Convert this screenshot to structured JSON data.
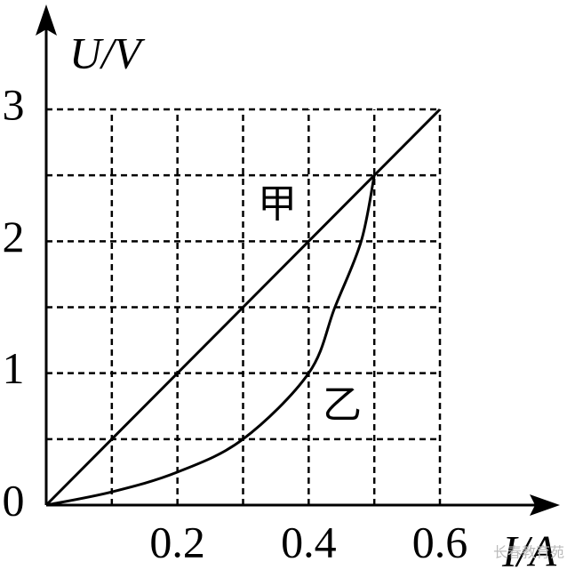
{
  "chart_data": {
    "type": "line",
    "x_label": "I/A",
    "y_label": "U/V",
    "xlim": [
      0,
      0.6
    ],
    "ylim": [
      0,
      3
    ],
    "xticks": [
      0.2,
      0.4,
      0.6
    ],
    "yticks": [
      0,
      1,
      2,
      3
    ],
    "xgrid": [
      0.1,
      0.2,
      0.3,
      0.4,
      0.5,
      0.6
    ],
    "ygrid": [
      0.5,
      1,
      1.5,
      2,
      2.5,
      3
    ],
    "grid": true,
    "series": [
      {
        "name": "甲",
        "color": "#000000",
        "x": [
          0,
          0.6
        ],
        "values": [
          0,
          3
        ]
      },
      {
        "name": "乙",
        "color": "#000000",
        "x": [
          0,
          0.1,
          0.2,
          0.3,
          0.4,
          0.44,
          0.48,
          0.5
        ],
        "values": [
          0,
          0.1,
          0.25,
          0.5,
          1,
          1.5,
          2,
          2.5
        ]
      }
    ],
    "watermark": "长春教育苑"
  }
}
